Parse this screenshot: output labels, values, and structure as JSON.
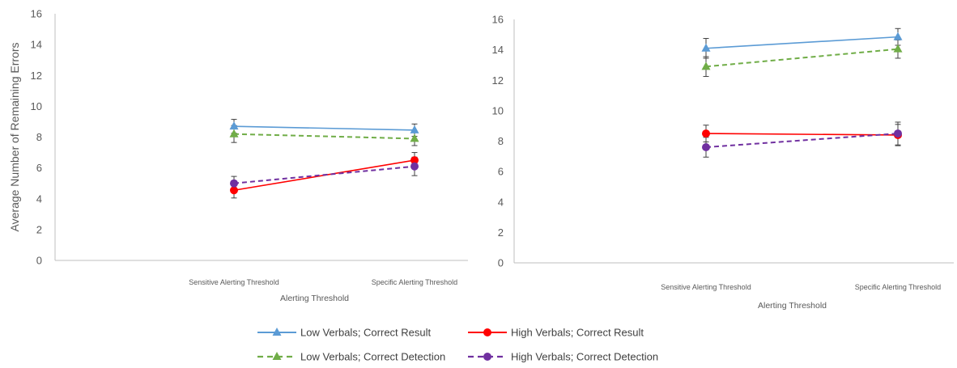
{
  "chart_data": [
    {
      "type": "line",
      "title": "",
      "ylabel": "Average Number of Remaining Errors",
      "xlabel": "Alerting Threshold",
      "categories": [
        "Sensitive Alerting Threshold",
        "Specific Alerting Threshold"
      ],
      "ylim": [
        0,
        16
      ],
      "yticks": [
        0,
        2,
        4,
        6,
        8,
        10,
        12,
        14,
        16
      ],
      "series": [
        {
          "name": "Low Verbals; Correct Result",
          "values": [
            8.7,
            8.45
          ],
          "errors": [
            0.45,
            0.4
          ]
        },
        {
          "name": "High Verbals; Correct Result",
          "values": [
            4.55,
            6.5
          ],
          "errors": [
            0.5,
            0.5
          ]
        },
        {
          "name": "Low Verbals; Correct Detection",
          "values": [
            8.2,
            7.9
          ],
          "errors": [
            0.55,
            0.45
          ]
        },
        {
          "name": "High Verbals; Correct Detection",
          "values": [
            5.0,
            6.1
          ],
          "errors": [
            0.45,
            0.6
          ]
        }
      ]
    },
    {
      "type": "line",
      "title": "",
      "ylabel": "",
      "xlabel": "Alerting Threshold",
      "categories": [
        "Sensitive Alerting Threshold",
        "Specific Alerting Threshold"
      ],
      "ylim": [
        0,
        16
      ],
      "yticks": [
        0,
        2,
        4,
        6,
        8,
        10,
        12,
        14,
        16
      ],
      "series": [
        {
          "name": "Low Verbals; Correct Result",
          "values": [
            14.1,
            14.85
          ],
          "errors": [
            0.65,
            0.55
          ]
        },
        {
          "name": "High Verbals; Correct Result",
          "values": [
            8.5,
            8.4
          ],
          "errors": [
            0.55,
            0.7
          ]
        },
        {
          "name": "Low Verbals; Correct Detection",
          "values": [
            12.9,
            14.05
          ],
          "errors": [
            0.65,
            0.6
          ]
        },
        {
          "name": "High Verbals; Correct Detection",
          "values": [
            7.6,
            8.5
          ],
          "errors": [
            0.65,
            0.75
          ]
        }
      ]
    }
  ],
  "legend": {
    "placement": "bottom",
    "entries": [
      "Low Verbals; Correct Result",
      "High Verbals; Correct Result",
      "Low Verbals; Correct Detection",
      "High Verbals; Correct Detection"
    ]
  },
  "series_style": [
    {
      "color": "#5B9BD5",
      "dash": "solid",
      "marker": "triangle"
    },
    {
      "color": "#FF0000",
      "dash": "solid",
      "marker": "circle"
    },
    {
      "color": "#70AD47",
      "dash": "dashed",
      "marker": "triangle"
    },
    {
      "color": "#7030A0",
      "dash": "dashed",
      "marker": "circle"
    }
  ],
  "colors": {
    "axis": "#BFBFBF",
    "text": "#595959",
    "errorbar": "#404040"
  }
}
